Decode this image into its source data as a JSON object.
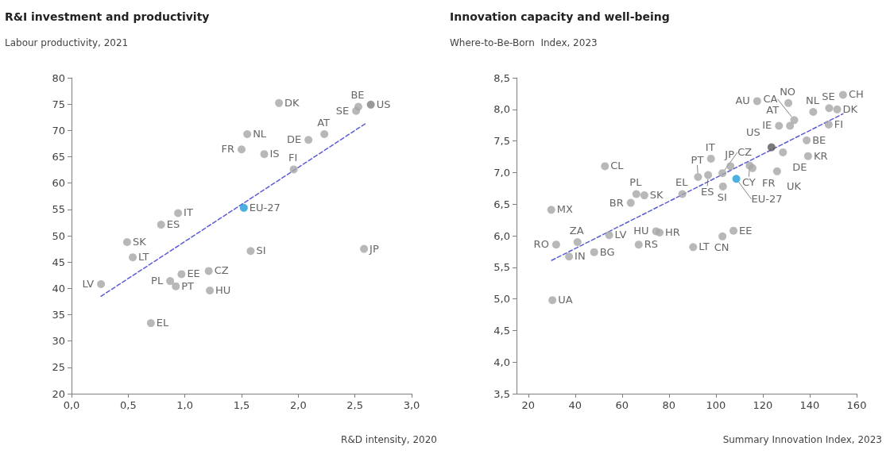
{
  "chart_data": [
    {
      "type": "scatter",
      "title": "R&I investment and productivity",
      "ylabel": "Labour productivity, 2021",
      "xlabel": "R&D intensity, 2020",
      "xlim": [
        0,
        3
      ],
      "xticks": [
        {
          "value": 0,
          "label": "0,0"
        },
        {
          "value": 0.5,
          "label": "0,5"
        },
        {
          "value": 1,
          "label": "1,0"
        },
        {
          "value": 1.5,
          "label": "1,5"
        },
        {
          "value": 2,
          "label": "2,0"
        },
        {
          "value": 2.5,
          "label": "2,5"
        },
        {
          "value": 3,
          "label": "3,0"
        }
      ],
      "ylim": [
        20,
        80
      ],
      "yticks": [
        20,
        25,
        30,
        35,
        40,
        45,
        50,
        55,
        60,
        65,
        70,
        75,
        80
      ],
      "grid": false,
      "marker": "circle",
      "series": [
        {
          "type": "line",
          "color": "#5b5bd6",
          "line_style": "dashed",
          "marker": "none",
          "x": [
            0.26,
            2.6
          ],
          "values": [
            38.5,
            71.4
          ]
        },
        {
          "color": "#a6a6a6",
          "x": [
            1.83,
            2.53,
            2.51,
            1.55,
            2.23,
            2.09,
            1.5,
            1.7,
            1.96,
            0.94,
            0.79,
            0.49,
            0.54,
            0.26,
            0.97,
            0.87,
            0.92,
            1.21,
            1.22,
            1.58,
            2.58,
            0.7
          ],
          "values": [
            75.2,
            74.5,
            73.7,
            69.3,
            69.3,
            68.2,
            66.4,
            65.5,
            62.6,
            54.3,
            52.1,
            48.8,
            45.9,
            40.8,
            42.7,
            41.4,
            40.4,
            43.3,
            39.6,
            47.1,
            47.5,
            33.4
          ],
          "value_labels": [
            "DK",
            "BE",
            "SE",
            "NL",
            "AT",
            "DE",
            "FR",
            "IS",
            "FI",
            "IT",
            "ES",
            "SK",
            "LT",
            "LV",
            "EE",
            "PL",
            "PT",
            "CZ",
            "HU",
            "SI",
            "JP",
            "EL"
          ]
        },
        {
          "color": "#7f7f7f",
          "x": [
            2.64
          ],
          "values": [
            74.9
          ],
          "value_labels": [
            "US"
          ]
        },
        {
          "color": "#1f9bd7",
          "x": [
            1.52
          ],
          "values": [
            55.3
          ],
          "value_labels": [
            "EU-27"
          ]
        }
      ]
    },
    {
      "type": "scatter",
      "title": "Innovation capacity and well-being",
      "ylabel": "Where-to-Be-Born  Index, 2023",
      "xlabel": "Summary Innovation Index, 2023",
      "xlim": [
        15,
        160
      ],
      "xticks": [
        20,
        40,
        60,
        80,
        100,
        120,
        140,
        160
      ],
      "ylim": [
        3.5,
        8.5
      ],
      "yticks": [
        {
          "value": 3.5,
          "label": "3,5"
        },
        {
          "value": 4,
          "label": "4,0"
        },
        {
          "value": 4.5,
          "label": "4,5"
        },
        {
          "value": 5,
          "label": "5,0"
        },
        {
          "value": 5.5,
          "label": "5,5"
        },
        {
          "value": 6,
          "label": "6,0"
        },
        {
          "value": 6.5,
          "label": "6,5"
        },
        {
          "value": 7,
          "label": "7,0"
        },
        {
          "value": 7.5,
          "label": "7,5"
        },
        {
          "value": 8,
          "label": "8,0"
        },
        {
          "value": 8.5,
          "label": "8,5"
        }
      ],
      "grid": false,
      "marker": "circle",
      "series": [
        {
          "type": "line",
          "color": "#5b5bd6",
          "line_style": "dashed",
          "marker": "none",
          "x": [
            30,
            154.2
          ],
          "values": [
            5.61,
            7.93
          ]
        },
        {
          "color": "#a6a6a6",
          "x": [
            52.7,
            29.8,
            31.9,
            41,
            37.4,
            54.5,
            48.1,
            30.3,
            63.7,
            66.1,
            69.5,
            85.7,
            74.5,
            76,
            67.1,
            90.3,
            102.8,
            107.5,
            103,
            102.8,
            106.2,
            114.4,
            115.6,
            92.4,
            96.7,
            97.9,
            128.6,
            126.1,
            126.9,
            133.4,
            131.6,
            117.6,
            130.9,
            141.5,
            154.2,
            148.3,
            151.7,
            148.1,
            138.7,
            139.3
          ],
          "values": [
            7.1,
            6.41,
            5.86,
            5.9,
            5.67,
            6.01,
            5.74,
            4.98,
            6.52,
            6.66,
            6.64,
            6.66,
            6.07,
            6.05,
            5.86,
            5.82,
            5.99,
            6.08,
            6.78,
            6.99,
            7.1,
            7.11,
            7.07,
            6.93,
            6.96,
            7.22,
            7.32,
            7.02,
            7.74,
            7.83,
            7.74,
            8.13,
            8.1,
            7.96,
            8.23,
            8.02,
            8,
            7.76,
            7.51,
            7.26
          ],
          "value_labels": [
            "CL",
            "MX",
            "RO",
            "ZA",
            "IN",
            "LV",
            "BG",
            "UA",
            "BR",
            "PL",
            "SK",
            "EL",
            "HU",
            "HR",
            "RS",
            "LT",
            "CN",
            "EE",
            "SI",
            "CZ",
            "JP",
            "CY",
            "FR",
            "PT",
            "ES",
            "IT",
            "DE",
            "UK",
            "IE",
            "CA",
            "AT",
            "AU",
            "NO",
            "NL",
            "CH",
            "SE",
            "DK",
            "FI",
            "BE",
            "KR"
          ]
        },
        {
          "color": "#595959",
          "x": [
            123.7
          ],
          "values": [
            7.4
          ],
          "value_labels": [
            "US"
          ]
        },
        {
          "color": "#1f9bd7",
          "x": [
            108.7
          ],
          "values": [
            6.9
          ],
          "value_labels": [
            "EU-27"
          ]
        }
      ]
    }
  ]
}
